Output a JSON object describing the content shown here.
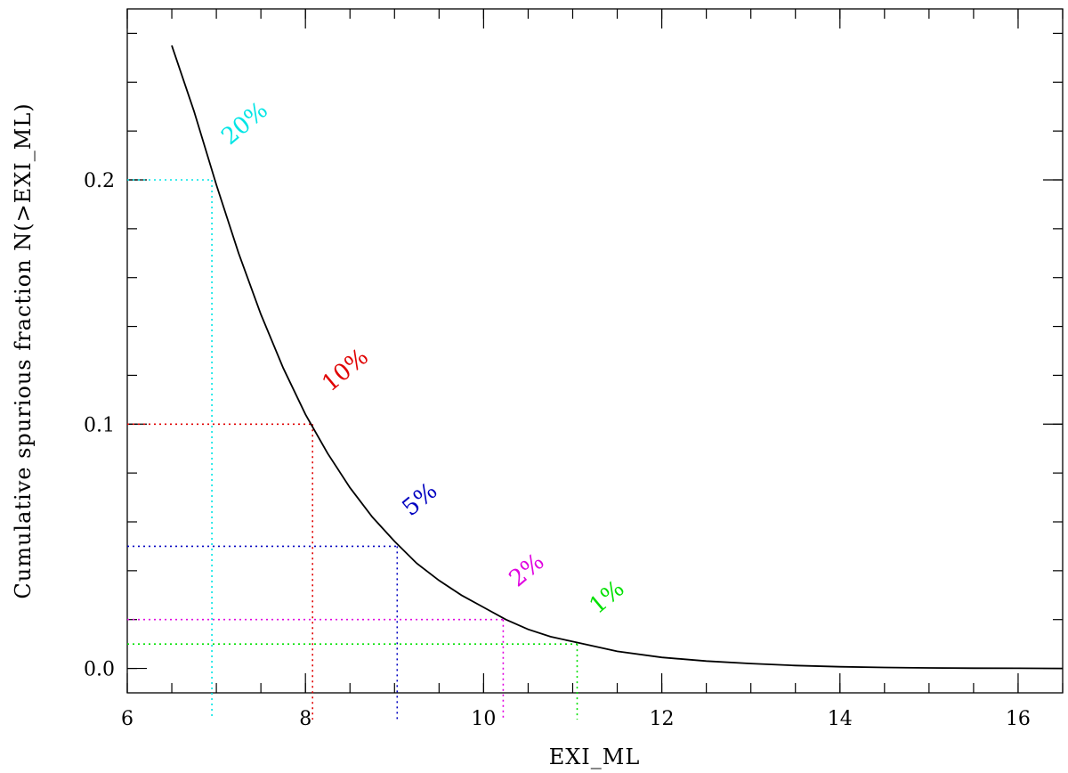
{
  "chart_data": {
    "type": "line",
    "title": "",
    "xlabel": "EXI_ML",
    "ylabel": "Cumulative spurious fraction N(>EXI_ML)",
    "xlim": [
      6,
      16.5
    ],
    "ylim": [
      -0.01,
      0.27
    ],
    "x_ticks": [
      6,
      8,
      10,
      12,
      14,
      16
    ],
    "x_tick_labels": [
      "6",
      "8",
      "10",
      "12",
      "14",
      "16"
    ],
    "y_ticks": [
      0.0,
      0.1,
      0.2
    ],
    "y_tick_labels": [
      "0.0",
      "0.1",
      "0.2"
    ],
    "grid": false,
    "legend": "none",
    "series": [
      {
        "color": "#000000",
        "x": [
          6.5,
          6.75,
          7.0,
          7.25,
          7.5,
          7.75,
          8.0,
          8.25,
          8.5,
          8.75,
          9.0,
          9.25,
          9.5,
          9.75,
          10.0,
          10.25,
          10.5,
          10.75,
          11.0,
          11.5,
          12.0,
          12.5,
          13.0,
          13.5,
          14.0,
          14.5,
          15.0,
          15.5,
          16.0,
          16.5
        ],
        "y": [
          0.255,
          0.228,
          0.198,
          0.17,
          0.145,
          0.123,
          0.104,
          0.088,
          0.074,
          0.062,
          0.052,
          0.043,
          0.036,
          0.03,
          0.025,
          0.02,
          0.016,
          0.013,
          0.011,
          0.007,
          0.0045,
          0.003,
          0.002,
          0.0012,
          0.0007,
          0.0004,
          0.0002,
          0.0001,
          5e-05,
          0.0
        ]
      }
    ],
    "thresholds": [
      {
        "label": "20%",
        "fraction": 0.2,
        "x": 6.95,
        "color": "#00e5e5",
        "label_x": 7.15,
        "label_y": 0.214
      },
      {
        "label": "10%",
        "fraction": 0.1,
        "x": 8.08,
        "color": "#e00000",
        "label_x": 8.28,
        "label_y": 0.113
      },
      {
        "label": "5%",
        "fraction": 0.05,
        "x": 9.03,
        "color": "#0000c0",
        "label_x": 9.18,
        "label_y": 0.062
      },
      {
        "label": "2%",
        "fraction": 0.02,
        "x": 10.22,
        "color": "#e000e0",
        "label_x": 10.38,
        "label_y": 0.033
      },
      {
        "label": "1%",
        "fraction": 0.01,
        "x": 11.05,
        "color": "#00e000",
        "label_x": 11.28,
        "label_y": 0.022
      }
    ]
  }
}
